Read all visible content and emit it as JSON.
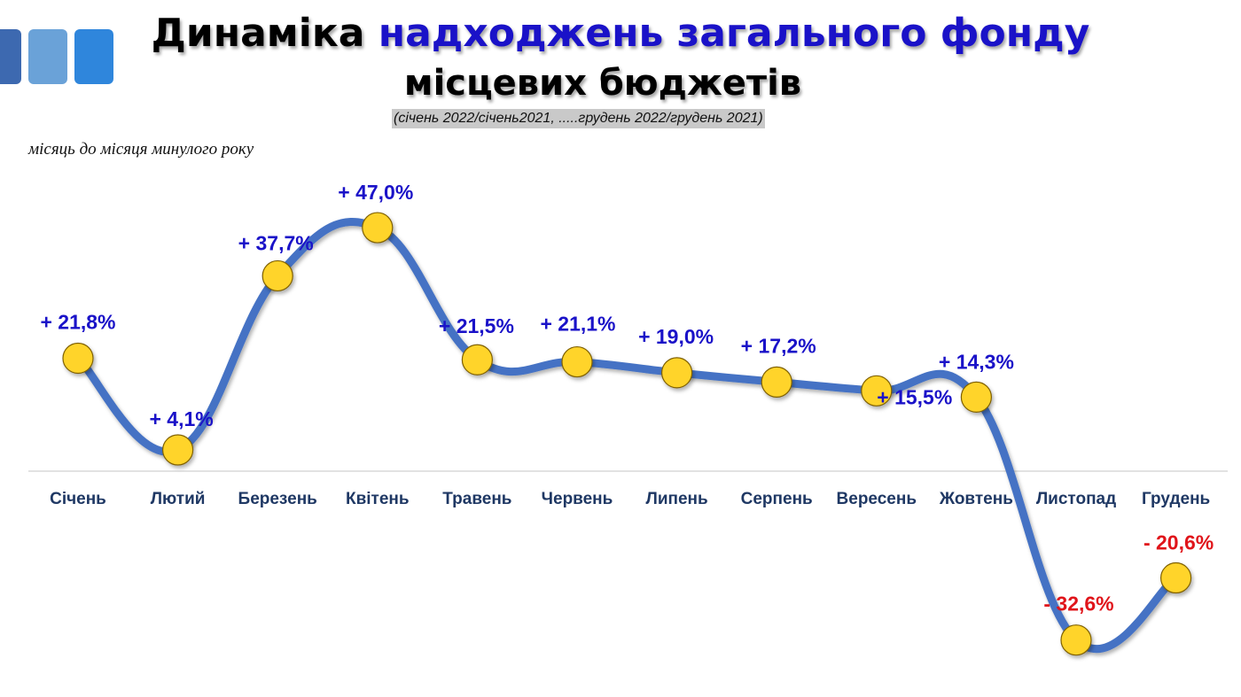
{
  "header": {
    "title_part1": "Динаміка",
    "title_part2": "надходжень загального фонду",
    "title_line2": "місцевих бюджетів",
    "subtitle": "(січень 2022/січень2021, .....грудень 2022/грудень 2021)",
    "note": "місяць до місяця минулого року"
  },
  "colors": {
    "line": "#4472c4",
    "marker_fill": "#ffd42a",
    "marker_stroke": "#7f6000",
    "positive_label": "#1a12c8",
    "negative_label": "#e0141a",
    "axis_label": "#1f3864",
    "title_highlight": "#1a12c8"
  },
  "chart_data": {
    "type": "line",
    "categories": [
      "Січень",
      "Лютий",
      "Березень",
      "Квітень",
      "Травень",
      "Червень",
      "Липень",
      "Серпень",
      "Вересень",
      "Жовтень",
      "Листопад",
      "Грудень"
    ],
    "series": [
      {
        "values": [
          21.8,
          4.1,
          37.7,
          47.0,
          21.5,
          21.1,
          19.0,
          17.2,
          15.5,
          14.3,
          -32.6,
          -20.6
        ],
        "labels": [
          "+ 21,8%",
          "+ 4,1%",
          "+ 37,7%",
          "+ 47,0%",
          "+ 21,5%",
          "+ 21,1%",
          "+ 19,0%",
          "+ 17,2%",
          "+ 15,5%",
          "+ 14,3%",
          "- 32,6%",
          "- 20,6%"
        ]
      }
    ],
    "xlabel": "",
    "ylabel": "",
    "ylim": [
      -40,
      55
    ],
    "grid": false,
    "legend": "none"
  }
}
